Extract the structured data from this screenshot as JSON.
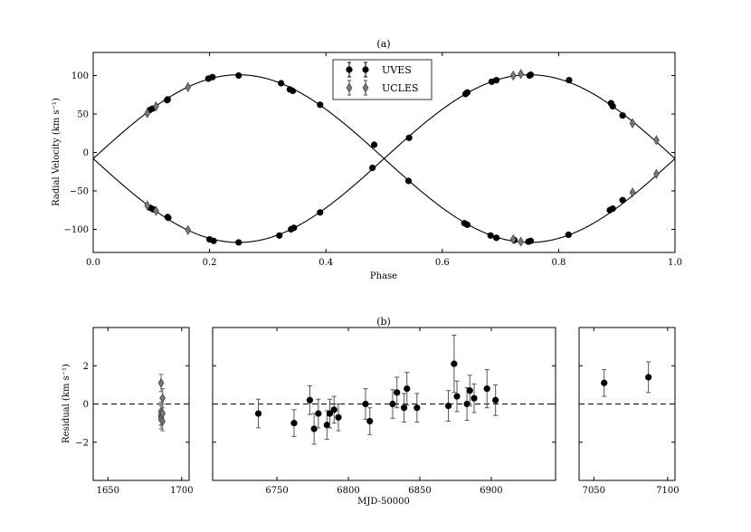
{
  "chart_data": [
    {
      "panel": "(a)",
      "type": "scatter",
      "title": "(a)",
      "xlabel": "Phase",
      "ylabel": "Radial Velocity (km s⁻¹)",
      "xlim": [
        0.0,
        1.0
      ],
      "ylim": [
        -130,
        130
      ],
      "xticks": [
        "0.0",
        "0.2",
        "0.4",
        "0.6",
        "0.8",
        "1.0"
      ],
      "yticks": [
        "100",
        "50",
        "0",
        "−50",
        "−100"
      ],
      "legend": {
        "placement": "top-center",
        "entries": [
          "UVES",
          "UCLES"
        ]
      },
      "model_curves": [
        {
          "name": "primary",
          "gamma": -8,
          "K": 109,
          "phase_of_max": 0.25
        },
        {
          "name": "secondary",
          "gamma": -8,
          "K": -109,
          "phase_of_max": 0.25
        }
      ],
      "series": [
        {
          "name": "UVES",
          "marker": "circle",
          "points": [
            [
              0.097,
              55
            ],
            [
              0.102,
              57
            ],
            [
              0.127,
              68
            ],
            [
              0.128,
              69
            ],
            [
              0.198,
              96
            ],
            [
              0.205,
              98
            ],
            [
              0.25,
              100
            ],
            [
              0.323,
              90
            ],
            [
              0.338,
              82
            ],
            [
              0.343,
              80
            ],
            [
              0.39,
              62
            ],
            [
              0.483,
              10
            ],
            [
              0.543,
              19
            ],
            [
              0.64,
              76
            ],
            [
              0.643,
              78
            ],
            [
              0.685,
              92
            ],
            [
              0.693,
              94
            ],
            [
              0.75,
              100
            ],
            [
              0.752,
              101
            ],
            [
              0.818,
              94
            ],
            [
              0.89,
              64
            ],
            [
              0.893,
              60
            ],
            [
              0.91,
              48
            ],
            [
              0.098,
              -72
            ],
            [
              0.103,
              -74
            ],
            [
              0.128,
              -84
            ],
            [
              0.129,
              -85
            ],
            [
              0.2,
              -113
            ],
            [
              0.207,
              -115
            ],
            [
              0.25,
              -117
            ],
            [
              0.32,
              -108
            ],
            [
              0.34,
              -100
            ],
            [
              0.345,
              -98
            ],
            [
              0.39,
              -78
            ],
            [
              0.48,
              -20
            ],
            [
              0.542,
              -37
            ],
            [
              0.638,
              -92
            ],
            [
              0.643,
              -94
            ],
            [
              0.683,
              -108
            ],
            [
              0.693,
              -111
            ],
            [
              0.724,
              -114
            ],
            [
              0.748,
              -116
            ],
            [
              0.752,
              -115
            ],
            [
              0.817,
              -107
            ],
            [
              0.888,
              -75
            ],
            [
              0.893,
              -73
            ],
            [
              0.91,
              -62
            ]
          ]
        },
        {
          "name": "UCLES",
          "marker": "diamond",
          "points": [
            [
              0.093,
              51
            ],
            [
              0.108,
              60
            ],
            [
              0.163,
              85
            ],
            [
              0.722,
              100
            ],
            [
              0.735,
              102
            ],
            [
              0.927,
              38
            ],
            [
              0.968,
              16
            ],
            [
              0.093,
              -69
            ],
            [
              0.108,
              -76
            ],
            [
              0.163,
              -101
            ],
            [
              0.722,
              -113
            ],
            [
              0.735,
              -116
            ],
            [
              0.927,
              -52
            ],
            [
              0.968,
              -28
            ]
          ]
        }
      ]
    },
    {
      "panel": "(b)",
      "type": "scatter",
      "title": "(b)",
      "xlabel": "MJD-50000",
      "ylabel": "Residual (km s⁻¹)",
      "ylim": [
        -4.0,
        4.0
      ],
      "yticks": [
        "2",
        "0",
        "−2"
      ],
      "reference_line": 0,
      "subpanels": [
        {
          "name": "left",
          "xlim": [
            1640,
            1705
          ],
          "xticks": [
            "1650",
            "1700"
          ],
          "series": [
            {
              "name": "UCLES",
              "marker": "diamond",
              "points": [
                [
                  1686,
                  -0.4,
                  0.5
                ],
                [
                  1686,
                  -0.6,
                  0.5
                ],
                [
                  1686,
                  -0.7,
                  0.4
                ],
                [
                  1686,
                  -0.8,
                  0.5
                ],
                [
                  1686,
                  1.1,
                  0.45
                ],
                [
                  1687,
                  0.3,
                  0.5
                ],
                [
                  1687,
                  -0.9,
                  0.5
                ],
                [
                  1687,
                  -0.5,
                  0.5
                ]
              ]
            }
          ]
        },
        {
          "name": "middle",
          "xlim": [
            6705,
            6945
          ],
          "xticks": [
            "6750",
            "6800",
            "6850",
            "6900"
          ],
          "series": [
            {
              "name": "UVES",
              "marker": "circle",
              "points": [
                [
                  6737,
                  -0.5,
                  0.75
                ],
                [
                  6762,
                  -1.0,
                  0.7
                ],
                [
                  6773,
                  0.2,
                  0.75
                ],
                [
                  6776,
                  -1.3,
                  0.8
                ],
                [
                  6779,
                  -0.5,
                  0.75
                ],
                [
                  6785,
                  -1.1,
                  0.75
                ],
                [
                  6787,
                  -0.5,
                  0.75
                ],
                [
                  6790,
                  -0.3,
                  0.7
                ],
                [
                  6793,
                  -0.7,
                  0.7
                ],
                [
                  6812,
                  0.0,
                  0.8
                ],
                [
                  6815,
                  -0.9,
                  0.7
                ],
                [
                  6831,
                  0.0,
                  0.75
                ],
                [
                  6834,
                  0.6,
                  0.8
                ],
                [
                  6839,
                  -0.2,
                  0.75
                ],
                [
                  6841,
                  0.8,
                  0.85
                ],
                [
                  6848,
                  -0.2,
                  0.75
                ],
                [
                  6870,
                  -0.1,
                  0.8
                ],
                [
                  6874,
                  2.1,
                  1.5
                ],
                [
                  6876,
                  0.4,
                  0.8
                ],
                [
                  6883,
                  0.0,
                  0.85
                ],
                [
                  6885,
                  0.7,
                  0.8
                ],
                [
                  6888,
                  0.3,
                  0.75
                ],
                [
                  6897,
                  0.8,
                  1.0
                ],
                [
                  6903,
                  0.2,
                  0.8
                ]
              ]
            }
          ]
        },
        {
          "name": "right",
          "xlim": [
            7040,
            7105
          ],
          "xticks": [
            "7050",
            "7100"
          ],
          "series": [
            {
              "name": "UVES",
              "marker": "circle",
              "points": [
                [
                  7057,
                  1.1,
                  0.7
                ],
                [
                  7087,
                  1.4,
                  0.8
                ]
              ]
            }
          ]
        }
      ]
    }
  ]
}
